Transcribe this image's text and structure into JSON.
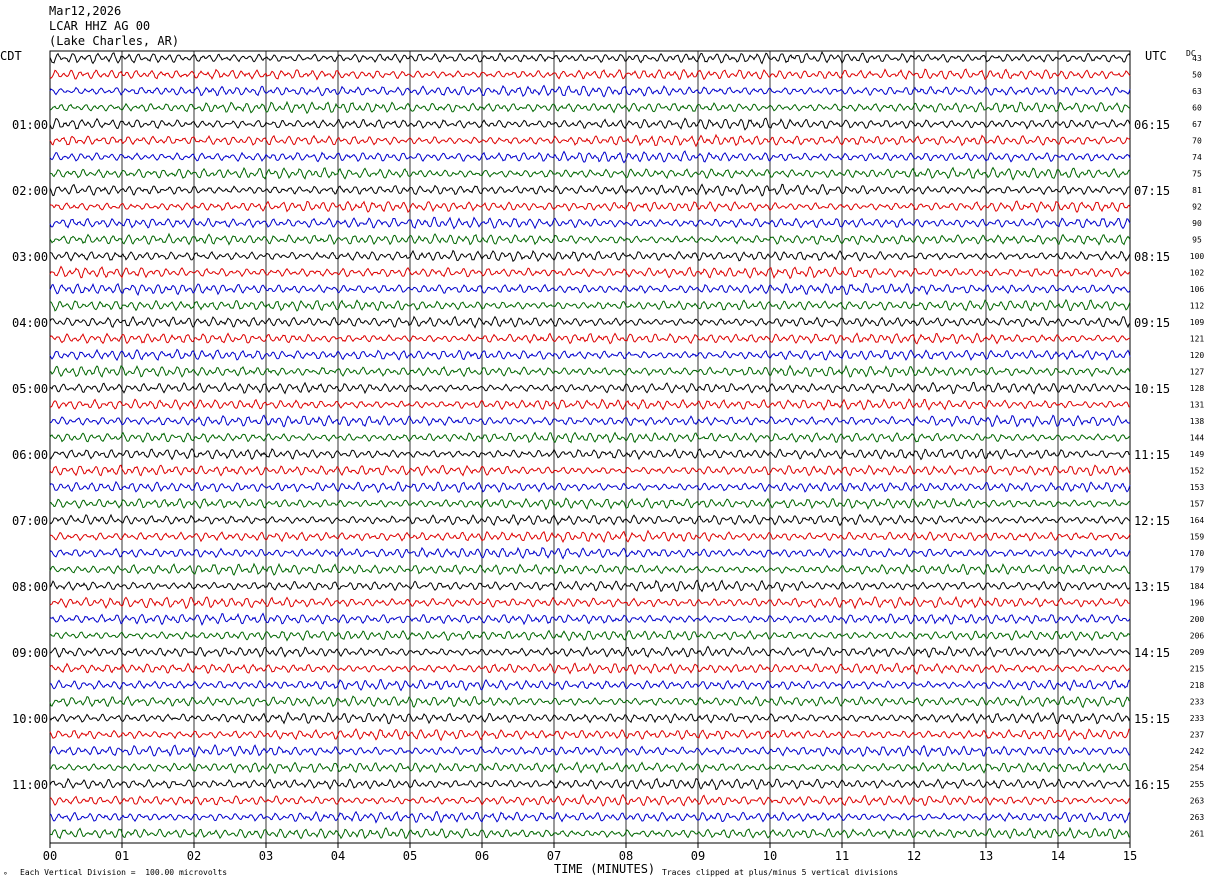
{
  "header": {
    "date": "Mar12,2026",
    "station": "LCAR HHZ AG 00",
    "location": "(Lake Charles, AR)"
  },
  "left_axis_title": "CDT",
  "right_axis_title": "UTC",
  "dc_label": "DC",
  "footer": {
    "scale_note": "Each Vertical Division =  100.00 microvolts",
    "clip_note": "Traces clipped at plus/minus 5 vertical divisions",
    "corner_mark": "°"
  },
  "colors": {
    "trace_cycle": [
      "#000000",
      "#dd0000",
      "#0000cc",
      "#006600"
    ],
    "grid": "#000000",
    "background": "#ffffff"
  },
  "chart_data": {
    "type": "line",
    "title": "",
    "xlabel": "TIME (MINUTES)",
    "ylabel": "",
    "xlim": [
      0,
      15
    ],
    "x_ticks": [
      "00",
      "01",
      "02",
      "03",
      "04",
      "05",
      "06",
      "07",
      "08",
      "09",
      "10",
      "11",
      "12",
      "13",
      "14",
      "15"
    ],
    "traces_per_hour": 4,
    "trace_count": 48,
    "left_time_labels": [
      "01:00",
      "02:00",
      "03:00",
      "04:00",
      "05:00",
      "06:00",
      "07:00",
      "08:00",
      "09:00",
      "10:00",
      "11:00"
    ],
    "right_time_labels": [
      "06:15",
      "07:15",
      "08:15",
      "09:15",
      "10:15",
      "11:15",
      "12:15",
      "13:15",
      "14:15",
      "15:15",
      "16:15"
    ],
    "dc_offsets": [
      43,
      50,
      63,
      60,
      67,
      70,
      74,
      75,
      81,
      92,
      90,
      95,
      100,
      102,
      106,
      112,
      109,
      121,
      120,
      127,
      128,
      131,
      138,
      144,
      149,
      152,
      153,
      157,
      164,
      159,
      170,
      179,
      184,
      196,
      200,
      206,
      209,
      215,
      218,
      233,
      233,
      237,
      242,
      254,
      255,
      263,
      263,
      261
    ],
    "grid": true
  }
}
